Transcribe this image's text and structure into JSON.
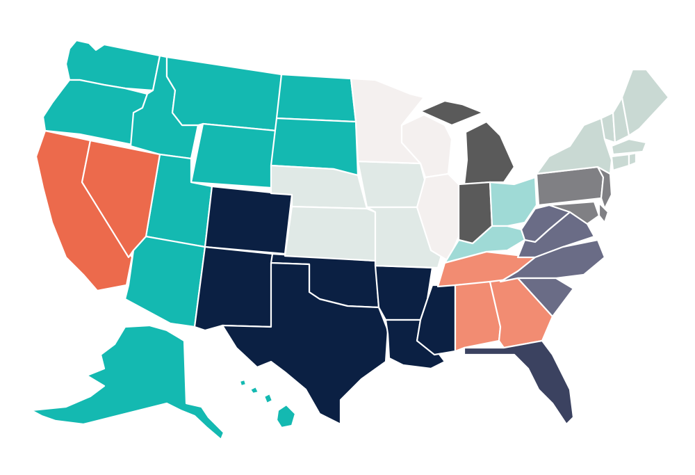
{
  "map": {
    "regions": [
      {
        "id": "pacific-northwest-mountain",
        "color": "#14b9b1",
        "states": [
          "WA",
          "OR",
          "ID",
          "MT",
          "WY",
          "ND",
          "SD",
          "UT",
          "AZ",
          "AK",
          "HI"
        ]
      },
      {
        "id": "california-nevada",
        "color": "#ec6a4c",
        "states": [
          "CA",
          "NV"
        ]
      },
      {
        "id": "south-central",
        "color": "#0b2043",
        "states": [
          "CO",
          "NM",
          "TX",
          "OK",
          "AR",
          "LA",
          "MS"
        ]
      },
      {
        "id": "plains",
        "color": "#e0e9e6",
        "states": [
          "NE",
          "KS",
          "IA",
          "MO"
        ]
      },
      {
        "id": "upper-midwest",
        "color": "#f4f0ef",
        "states": [
          "MN",
          "WI",
          "IL"
        ]
      },
      {
        "id": "great-lakes",
        "color": "#5a5a5a",
        "states": [
          "MI",
          "IN"
        ]
      },
      {
        "id": "ohio-kentucky",
        "color": "#9fdad6",
        "states": [
          "OH",
          "KY"
        ]
      },
      {
        "id": "southeast",
        "color": "#f28c72",
        "states": [
          "TN",
          "AL",
          "GA"
        ]
      },
      {
        "id": "florida",
        "color": "#3b4260",
        "states": [
          "FL"
        ]
      },
      {
        "id": "mid-atlantic",
        "color": "#808084",
        "states": [
          "PA",
          "NJ",
          "MD",
          "DE"
        ]
      },
      {
        "id": "virginias-carolinas",
        "color": "#6a6c86",
        "states": [
          "WV",
          "VA",
          "NC",
          "SC"
        ]
      },
      {
        "id": "northeast",
        "color": "#c9d9d3",
        "states": [
          "NY",
          "VT",
          "NH",
          "ME",
          "MA",
          "CT",
          "RI"
        ]
      }
    ]
  }
}
